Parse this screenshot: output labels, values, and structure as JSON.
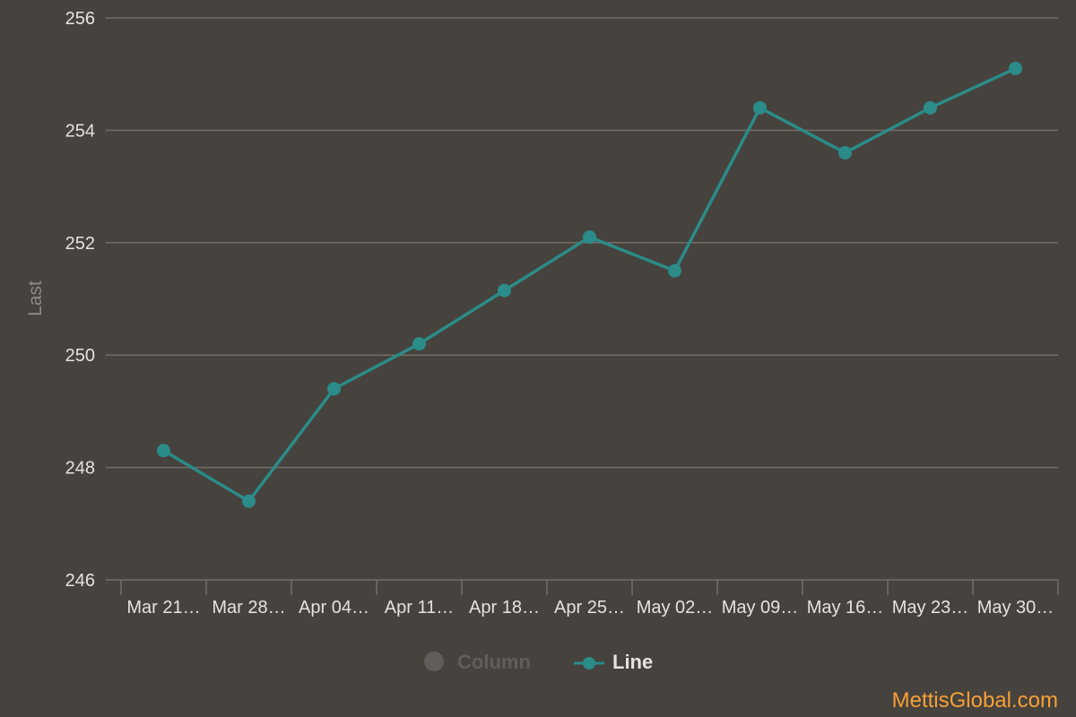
{
  "chart_data": {
    "type": "line",
    "categories": [
      "Mar 21…",
      "Mar 28…",
      "Apr 04…",
      "Apr 11…",
      "Apr 18…",
      "Apr 25…",
      "May 02…",
      "May 09…",
      "May 16…",
      "May 23…",
      "May 30…"
    ],
    "series": [
      {
        "name": "Line",
        "values": [
          248.3,
          247.4,
          249.4,
          250.2,
          251.15,
          252.1,
          251.5,
          254.4,
          253.6,
          254.4,
          255.1
        ]
      }
    ],
    "legend": [
      {
        "label": "Column",
        "state": "hidden"
      },
      {
        "label": "Line",
        "state": "visible"
      }
    ],
    "xlabel": "",
    "ylabel": "Last",
    "ylim": [
      246,
      256
    ],
    "yticks": [
      246,
      248,
      250,
      252,
      254,
      256
    ],
    "grid": true,
    "legend_position": "bottom-center",
    "colors": {
      "background": "#46423e",
      "line": "#2b8c89",
      "grid": "#726e6a",
      "legend_hidden": "#615d5a",
      "credit": "#f7a035"
    }
  },
  "credit": "MettisGlobal.com"
}
